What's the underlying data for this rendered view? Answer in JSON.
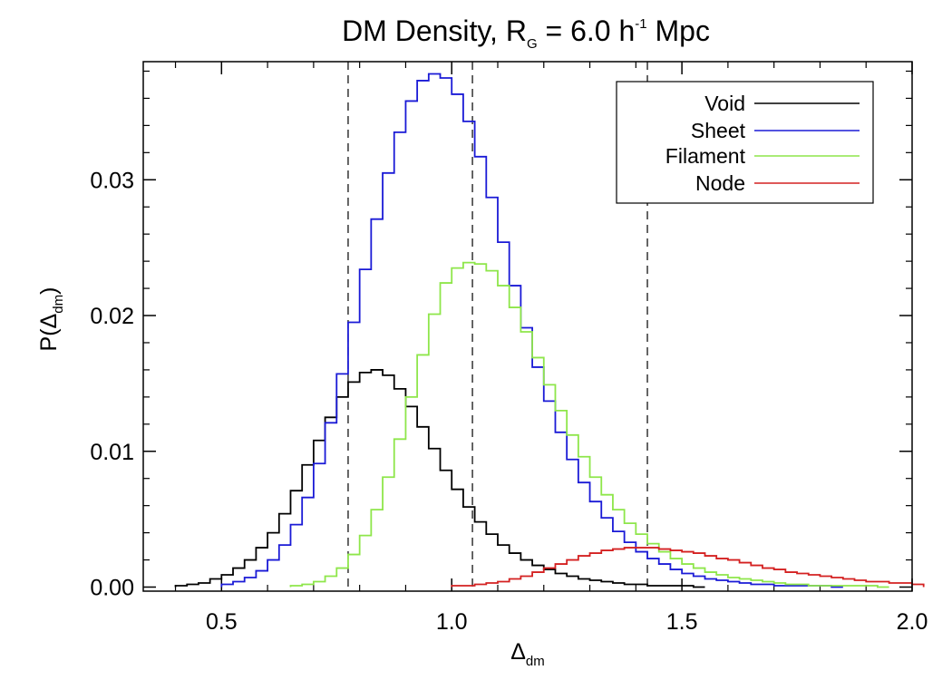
{
  "chart_data": {
    "type": "line",
    "style": "step-histogram",
    "title": {
      "main": "DM Density, R",
      "subscript": "G",
      "middle": " = 6.0 h",
      "superscript": "-1",
      "suffix": " Mpc"
    },
    "xlabel": {
      "symbol": "Δ",
      "subscript": "dm"
    },
    "ylabel": {
      "prefix": "P(",
      "symbol": "Δ",
      "subscript": "dm",
      "suffix": ")"
    },
    "xlim": [
      0.33,
      2.0
    ],
    "ylim": [
      -0.0003,
      0.0387
    ],
    "xticks": [
      0.5,
      1.0,
      1.5,
      2.0
    ],
    "xtick_labels": [
      "0.5",
      "1.0",
      "1.5",
      "2.0"
    ],
    "yticks": [
      0.0,
      0.01,
      0.02,
      0.03
    ],
    "ytick_labels": [
      "0.00",
      "0.01",
      "0.02",
      "0.03"
    ],
    "x_minor_step": 0.1,
    "y_minor_step": 0.002,
    "bin_width": 0.025,
    "vlines": [
      0.775,
      1.045,
      1.425
    ],
    "legend": {
      "position": "top-right",
      "entries": [
        "Void",
        "Sheet",
        "Filament",
        "Node"
      ]
    },
    "series": [
      {
        "name": "Void",
        "color": "#000000",
        "x_start": 0.4,
        "values": [
          0.0001,
          0.0002,
          0.0003,
          0.0006,
          0.0009,
          0.0014,
          0.002,
          0.0029,
          0.004,
          0.0054,
          0.0071,
          0.009,
          0.0108,
          0.0125,
          0.014,
          0.0151,
          0.0158,
          0.016,
          0.0156,
          0.0146,
          0.0133,
          0.0118,
          0.0102,
          0.0086,
          0.0072,
          0.0059,
          0.0048,
          0.0039,
          0.0031,
          0.0025,
          0.002,
          0.0016,
          0.0013,
          0.001,
          0.0008,
          0.0006,
          0.0005,
          0.0004,
          0.0003,
          0.0002,
          0.0002,
          0.0001,
          0.0001,
          0.0001,
          0.0001,
          0.0
        ]
      },
      {
        "name": "Sheet",
        "color": "#1a1ad6",
        "x_start": 0.5,
        "values": [
          0.0002,
          0.0004,
          0.0007,
          0.0012,
          0.002,
          0.0031,
          0.0046,
          0.0066,
          0.0091,
          0.0121,
          0.0157,
          0.0195,
          0.0234,
          0.0271,
          0.0305,
          0.0335,
          0.0358,
          0.0373,
          0.0378,
          0.0375,
          0.0363,
          0.0343,
          0.0317,
          0.0287,
          0.0254,
          0.0222,
          0.0191,
          0.0162,
          0.0137,
          0.0114,
          0.0094,
          0.0077,
          0.0063,
          0.0051,
          0.0041,
          0.0033,
          0.0026,
          0.0021,
          0.0017,
          0.0013,
          0.001,
          0.0008,
          0.0006,
          0.0005,
          0.0004,
          0.0003,
          0.0002,
          0.0002,
          0.0001,
          0.0001,
          0.0001,
          0.0001,
          0.0001,
          0.0
        ]
      },
      {
        "name": "Filament",
        "color": "#8ee64a",
        "x_start": 0.65,
        "values": [
          0.0001,
          0.0002,
          0.0004,
          0.0008,
          0.0014,
          0.0024,
          0.0038,
          0.0057,
          0.0081,
          0.0109,
          0.014,
          0.0171,
          0.0201,
          0.0224,
          0.0235,
          0.0239,
          0.0238,
          0.0233,
          0.0222,
          0.0206,
          0.0188,
          0.0169,
          0.0149,
          0.013,
          0.0112,
          0.0096,
          0.0081,
          0.0068,
          0.0057,
          0.0047,
          0.0039,
          0.0032,
          0.0026,
          0.0021,
          0.0017,
          0.0014,
          0.0011,
          0.0009,
          0.0007,
          0.0006,
          0.0005,
          0.0004,
          0.0003,
          0.0002,
          0.0002,
          0.0001,
          0.0001,
          0.0001,
          0.0001,
          0.0001,
          0.0001,
          0.0
        ]
      },
      {
        "name": "Node",
        "color": "#d42020",
        "x_start": 1.0,
        "values": [
          0.0001,
          0.0001,
          0.0002,
          0.0003,
          0.0004,
          0.0006,
          0.0008,
          0.0011,
          0.0014,
          0.0017,
          0.002,
          0.0023,
          0.0025,
          0.0027,
          0.0028,
          0.0029,
          0.0029,
          0.0029,
          0.0028,
          0.0027,
          0.0026,
          0.0025,
          0.0023,
          0.0021,
          0.002,
          0.0018,
          0.0016,
          0.0014,
          0.0013,
          0.0011,
          0.001,
          0.0009,
          0.0008,
          0.0007,
          0.0006,
          0.0005,
          0.0004,
          0.0004,
          0.0003,
          0.0003,
          0.0002
        ]
      }
    ]
  }
}
